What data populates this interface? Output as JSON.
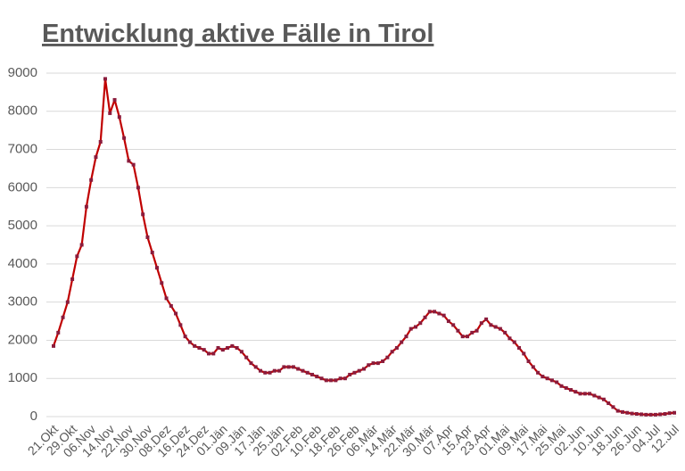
{
  "chart_data": {
    "type": "line",
    "title": "Entwicklung aktive Fälle in Tirol",
    "categories": [
      "21.Okt",
      null,
      null,
      null,
      "29.Okt",
      null,
      null,
      null,
      "06.Nov",
      null,
      null,
      null,
      "14.Nov",
      null,
      null,
      null,
      "22.Nov",
      null,
      null,
      null,
      "30.Nov",
      null,
      null,
      null,
      "08.Dez",
      null,
      null,
      null,
      "16.Dez",
      null,
      null,
      null,
      "24.Dez",
      null,
      null,
      null,
      "01.Jän",
      null,
      null,
      null,
      "09.Jän",
      null,
      null,
      null,
      "17.Jän",
      null,
      null,
      null,
      "25.Jän",
      null,
      null,
      null,
      "02.Feb",
      null,
      null,
      null,
      "10.Feb",
      null,
      null,
      null,
      "18.Feb",
      null,
      null,
      null,
      "26.Feb",
      null,
      null,
      null,
      "06.Mär",
      null,
      null,
      null,
      "14.Mär",
      null,
      null,
      null,
      "22.Mär",
      null,
      null,
      null,
      "30.Mär",
      null,
      null,
      null,
      "07.Apr",
      null,
      null,
      null,
      "15.Apr",
      null,
      null,
      null,
      "23.Apr",
      null,
      null,
      null,
      "01.Mai",
      null,
      null,
      null,
      "09.Mai",
      null,
      null,
      null,
      "17.Mai",
      null,
      null,
      null,
      "25.Mai",
      null,
      null,
      null,
      "02.Jun",
      null,
      null,
      null,
      "10.Jun",
      null,
      null,
      null,
      "18.Jun",
      null,
      null,
      null,
      "26.Jun",
      null,
      null,
      null,
      "04.Jul",
      null,
      null,
      null,
      "12.Jul"
    ],
    "values": [
      1850,
      2200,
      2600,
      3000,
      3600,
      4200,
      4500,
      5500,
      6200,
      6800,
      7200,
      8850,
      7950,
      8300,
      7850,
      7300,
      6700,
      6600,
      6000,
      5300,
      4700,
      4300,
      3900,
      3500,
      3100,
      2900,
      2700,
      2400,
      2100,
      1950,
      1850,
      1800,
      1750,
      1650,
      1650,
      1800,
      1750,
      1800,
      1850,
      1800,
      1700,
      1550,
      1400,
      1300,
      1200,
      1150,
      1150,
      1200,
      1200,
      1300,
      1300,
      1300,
      1250,
      1200,
      1150,
      1100,
      1050,
      1000,
      950,
      950,
      950,
      1000,
      1000,
      1100,
      1150,
      1200,
      1250,
      1350,
      1400,
      1400,
      1450,
      1550,
      1700,
      1800,
      1950,
      2100,
      2300,
      2350,
      2450,
      2600,
      2750,
      2750,
      2700,
      2650,
      2500,
      2400,
      2250,
      2100,
      2100,
      2200,
      2250,
      2450,
      2550,
      2400,
      2350,
      2300,
      2200,
      2050,
      1950,
      1800,
      1650,
      1450,
      1300,
      1150,
      1050,
      1000,
      950,
      900,
      800,
      750,
      700,
      650,
      600,
      600,
      600,
      550,
      500,
      450,
      350,
      250,
      150,
      120,
      100,
      80,
      70,
      60,
      50,
      50,
      50,
      60,
      70,
      90,
      100
    ],
    "color": "#c00000",
    "marker_color": "#8b1c3c",
    "ylim": [
      0,
      9000
    ],
    "yticks": [
      0,
      1000,
      2000,
      3000,
      4000,
      5000,
      6000,
      7000,
      8000,
      9000
    ],
    "grid": true
  }
}
